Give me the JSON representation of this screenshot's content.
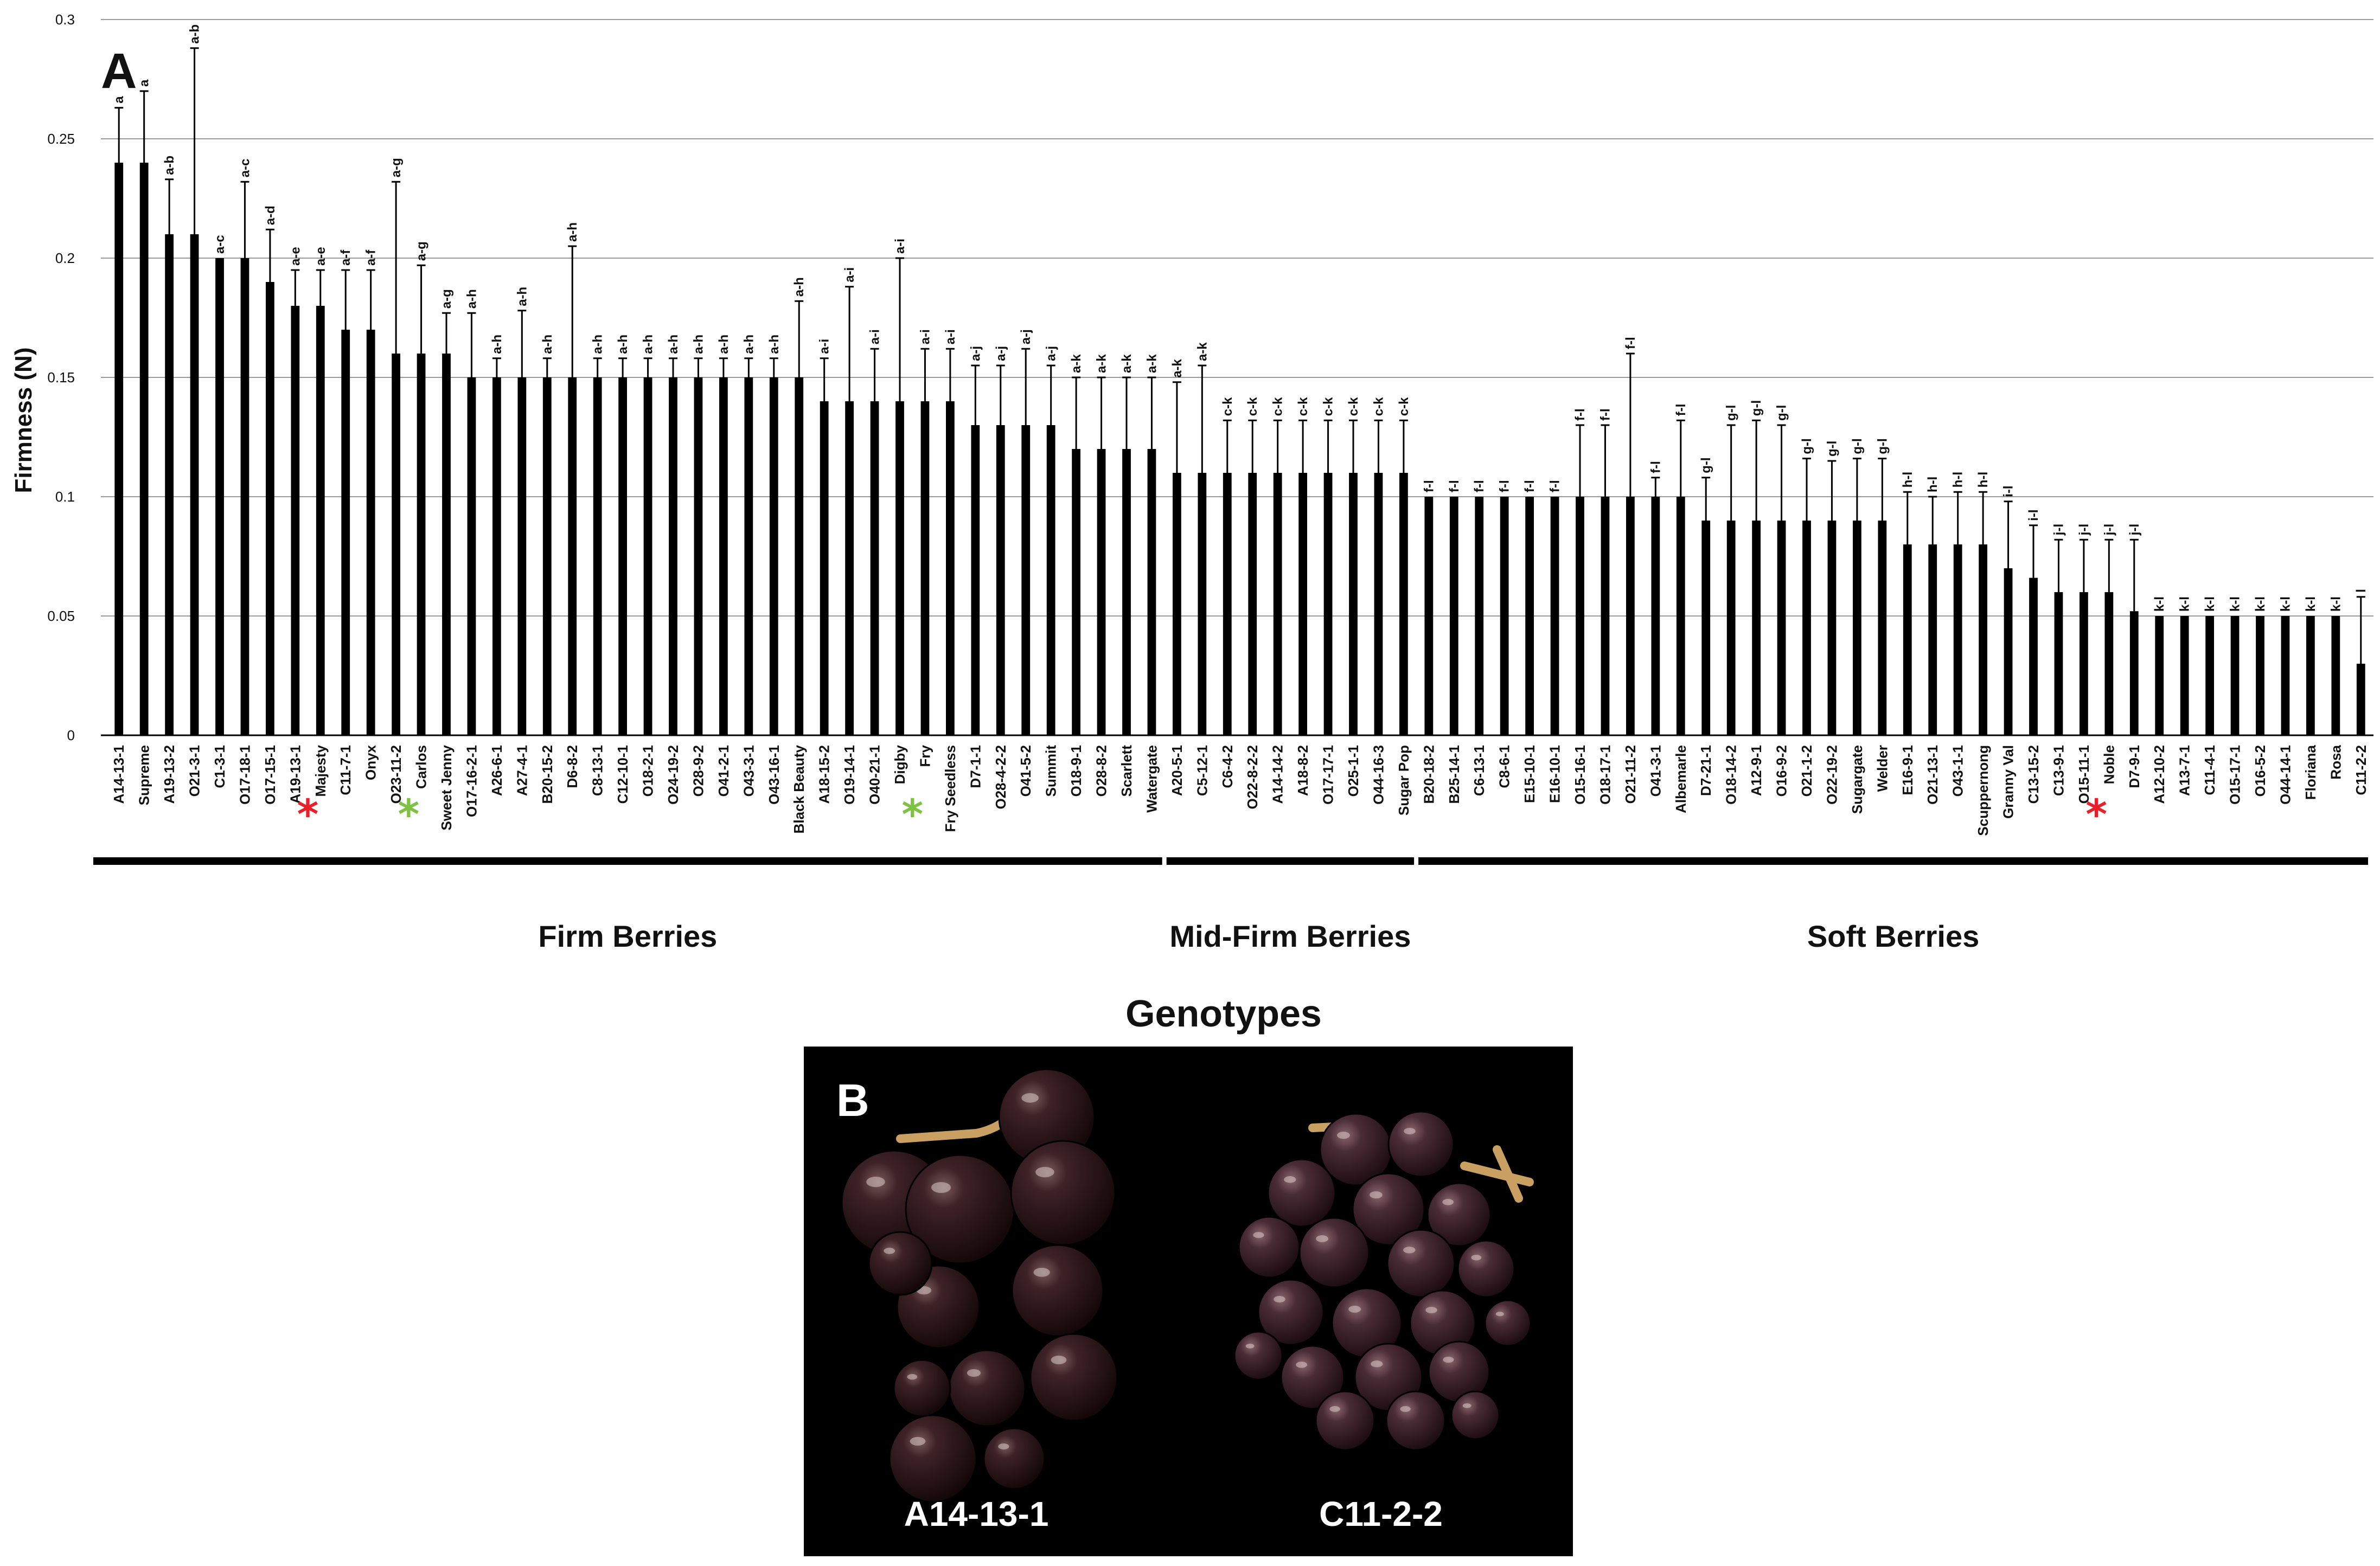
{
  "chart_data": {
    "type": "bar",
    "panel_label": "A",
    "ylabel": "Firmness (N)",
    "xlabel": "Genotypes",
    "ylim": [
      0,
      0.3
    ],
    "yticks": [
      "0",
      "0.05",
      "0.1",
      "0.15",
      "0.2",
      "0.25",
      "0.3"
    ],
    "grid": true,
    "categories": [
      "A14-13-1",
      "Supreme",
      "A19-13-2",
      "O21-3-1",
      "C1-3-1",
      "O17-18-1",
      "O17-15-1",
      "A19-13-1",
      "Majesty",
      "C11-7-1",
      "Onyx",
      "O23-11-2",
      "Carlos",
      "Sweet Jenny",
      "O17-16-2-1",
      "A26-6-1",
      "A27-4-1",
      "B20-15-2",
      "D6-8-2",
      "C8-13-1",
      "C12-10-1",
      "O18-2-1",
      "O24-19-2",
      "O28-9-2",
      "O41-2-1",
      "O43-3-1",
      "O43-16-1",
      "Black Beauty",
      "A18-15-2",
      "O19-14-1",
      "O40-21-1",
      "Digby",
      "Fry",
      "Fry Seedless",
      "D7-1-1",
      "O28-4-2-2",
      "O41-5-2",
      "Summit",
      "O18-9-1",
      "O28-8-2",
      "Scarlett",
      "Watergate",
      "A20-5-1",
      "C5-12-1",
      "C6-4-2",
      "O22-8-2-2",
      "A14-14-2",
      "A18-8-2",
      "O17-17-1",
      "O25-1-1",
      "O44-16-3",
      "Sugar Pop",
      "B20-18-2",
      "B25-14-1",
      "C6-13-1",
      "C8-6-1",
      "E15-10-1",
      "E16-10-1",
      "O15-16-1",
      "O18-17-1",
      "O21-11-2",
      "O41-3-1",
      "Albemarle",
      "D7-21-1",
      "O18-14-2",
      "A12-9-1",
      "O16-9-2",
      "O21-1-2",
      "O22-19-2",
      "Sugargate",
      "Welder",
      "E16-9-1",
      "O21-13-1",
      "O43-1-1",
      "Scuppernong",
      "Granny Val",
      "C13-15-2",
      "C13-9-1",
      "O15-11-1",
      "Noble",
      "D7-9-1",
      "A12-10-2",
      "A13-7-1",
      "C11-4-1",
      "O15-17-1",
      "O16-5-2",
      "O44-14-1",
      "Floriana",
      "Rosa",
      "C11-2-2"
    ],
    "values": [
      0.24,
      0.24,
      0.21,
      0.21,
      0.2,
      0.2,
      0.19,
      0.18,
      0.18,
      0.17,
      0.17,
      0.16,
      0.16,
      0.16,
      0.15,
      0.15,
      0.15,
      0.15,
      0.15,
      0.15,
      0.15,
      0.15,
      0.15,
      0.15,
      0.15,
      0.15,
      0.15,
      0.15,
      0.14,
      0.14,
      0.14,
      0.14,
      0.14,
      0.14,
      0.13,
      0.13,
      0.13,
      0.13,
      0.12,
      0.12,
      0.12,
      0.12,
      0.11,
      0.11,
      0.11,
      0.11,
      0.11,
      0.11,
      0.11,
      0.11,
      0.11,
      0.11,
      0.1,
      0.1,
      0.1,
      0.1,
      0.1,
      0.1,
      0.1,
      0.1,
      0.1,
      0.1,
      0.1,
      0.09,
      0.09,
      0.09,
      0.09,
      0.09,
      0.09,
      0.09,
      0.09,
      0.08,
      0.08,
      0.08,
      0.08,
      0.07,
      0.066,
      0.06,
      0.06,
      0.06,
      0.052,
      0.05,
      0.05,
      0.05,
      0.05,
      0.05,
      0.05,
      0.05,
      0.05,
      0.03
    ],
    "errors": [
      0.023,
      0.03,
      0.023,
      0.078,
      0.0,
      0.032,
      0.022,
      0.015,
      0.015,
      0.025,
      0.025,
      0.072,
      0.037,
      0.017,
      0.027,
      0.008,
      0.028,
      0.008,
      0.055,
      0.008,
      0.008,
      0.008,
      0.008,
      0.008,
      0.008,
      0.008,
      0.008,
      0.032,
      0.018,
      0.048,
      0.022,
      0.06,
      0.022,
      0.022,
      0.025,
      0.025,
      0.032,
      0.025,
      0.03,
      0.03,
      0.03,
      0.03,
      0.038,
      0.045,
      0.022,
      0.022,
      0.022,
      0.022,
      0.022,
      0.022,
      0.022,
      0.022,
      0.0,
      0.0,
      0.0,
      0.0,
      0.0,
      0.0,
      0.03,
      0.03,
      0.06,
      0.008,
      0.032,
      0.018,
      0.04,
      0.042,
      0.04,
      0.026,
      0.025,
      0.026,
      0.026,
      0.022,
      0.02,
      0.022,
      0.022,
      0.028,
      0.022,
      0.022,
      0.022,
      0.022,
      0.03,
      0.0,
      0.0,
      0.0,
      0.0,
      0.0,
      0.0,
      0.0,
      0.0,
      0.028
    ],
    "significance": [
      "a",
      "a",
      "a-b",
      "a-b",
      "a-c",
      "a-c",
      "a-d",
      "a-e",
      "a-e",
      "a-f",
      "a-f",
      "a-g",
      "a-g",
      "a-g",
      "a-h",
      "a-h",
      "a-h",
      "a-h",
      "a-h",
      "a-h",
      "a-h",
      "a-h",
      "a-h",
      "a-h",
      "a-h",
      "a-h",
      "a-h",
      "a-h",
      "a-i",
      "a-i",
      "a-i",
      "a-i",
      "a-i",
      "a-i",
      "a-j",
      "a-j",
      "a-j",
      "a-j",
      "a-k",
      "a-k",
      "a-k",
      "a-k",
      "a-k",
      "a-k",
      "c-k",
      "c-k",
      "c-k",
      "c-k",
      "c-k",
      "c-k",
      "c-k",
      "c-k",
      "f-l",
      "f-l",
      "f-l",
      "f-l",
      "f-l",
      "f-l",
      "f-l",
      "f-l",
      "f-l",
      "f-l",
      "f-l",
      "g-l",
      "g-l",
      "g-l",
      "g-l",
      "g-l",
      "g-l",
      "g-l",
      "g-l",
      "h-l",
      "h-l",
      "h-l",
      "h-l",
      "i-l",
      "i-l",
      "j-l",
      "j-l",
      "j-l",
      "j-l",
      "k-l",
      "k-l",
      "k-l",
      "k-l",
      "k-l",
      "k-l",
      "k-l",
      "k-l",
      "l"
    ],
    "groups": [
      {
        "label": "Firm Berries",
        "start": 0,
        "end": 41
      },
      {
        "label": "Mid-Firm Berries",
        "start": 42,
        "end": 51
      },
      {
        "label": "Soft Berries",
        "start": 52,
        "end": 89
      }
    ],
    "markers": [
      {
        "category": "Majesty",
        "symbol": "*",
        "color": "#e8202a"
      },
      {
        "category": "Carlos",
        "symbol": "*",
        "color": "#7dc242"
      },
      {
        "category": "Fry",
        "symbol": "*",
        "color": "#7dc242"
      },
      {
        "category": "Noble",
        "symbol": "*",
        "color": "#e8202a"
      }
    ]
  },
  "panel_b": {
    "panel_label": "B",
    "photos": [
      {
        "label": "A14-13-1",
        "description": "loose cluster of large dark berries"
      },
      {
        "label": "C11-2-2",
        "description": "tight cluster of small dark berries"
      }
    ]
  },
  "colors": {
    "bar": "#000000",
    "grid": "#9a9a9a",
    "photo_bg": "#000000",
    "berry": "#2a1518"
  }
}
